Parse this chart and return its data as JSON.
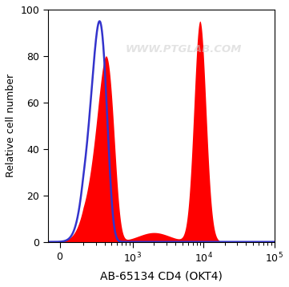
{
  "xlabel": "AB-65134 CD4 (OKT4)",
  "ylabel": "Relative cell number",
  "ylim": [
    0,
    100
  ],
  "yticks": [
    0,
    20,
    40,
    60,
    80,
    100
  ],
  "watermark": "WWW.PTGLAB.COM",
  "watermark_color": "#cccccc",
  "background_color": "#ffffff",
  "blue_line_color": "#3333cc",
  "red_fill_color": "#ff0000",
  "red_fill_alpha": 1.0,
  "figsize": [
    3.61,
    3.58
  ],
  "dpi": 100,
  "xlim": [
    -100,
    100000
  ],
  "linthresh": 200,
  "xtick_positions": [
    0,
    1000,
    10000,
    100000
  ],
  "xtick_labels": [
    "0",
    "10$^3$",
    "10$^4$",
    "10$^5$"
  ]
}
